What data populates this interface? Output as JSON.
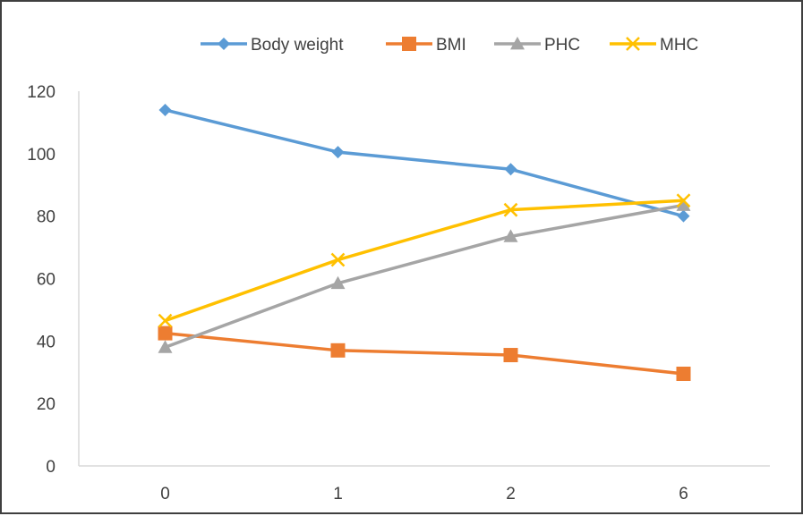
{
  "chart_data": {
    "type": "line",
    "categories": [
      "0",
      "1",
      "2",
      "6"
    ],
    "ylim": [
      0,
      120
    ],
    "yticks": [
      "0",
      "20",
      "40",
      "60",
      "80",
      "100",
      "120"
    ],
    "grid": false,
    "legend_position": "top",
    "series": [
      {
        "name": "Body weight",
        "values": [
          114,
          100.5,
          95,
          80
        ],
        "color": "#5b9bd5",
        "marker": "diamond"
      },
      {
        "name": "BMI",
        "values": [
          42.5,
          37,
          35.5,
          29.5
        ],
        "color": "#ed7d31",
        "marker": "square"
      },
      {
        "name": "PHC",
        "values": [
          38,
          58.5,
          73.5,
          83.5
        ],
        "color": "#a5a5a5",
        "marker": "triangle"
      },
      {
        "name": "MHC",
        "values": [
          46.5,
          66,
          82,
          85
        ],
        "color": "#ffc000",
        "marker": "x"
      }
    ]
  }
}
